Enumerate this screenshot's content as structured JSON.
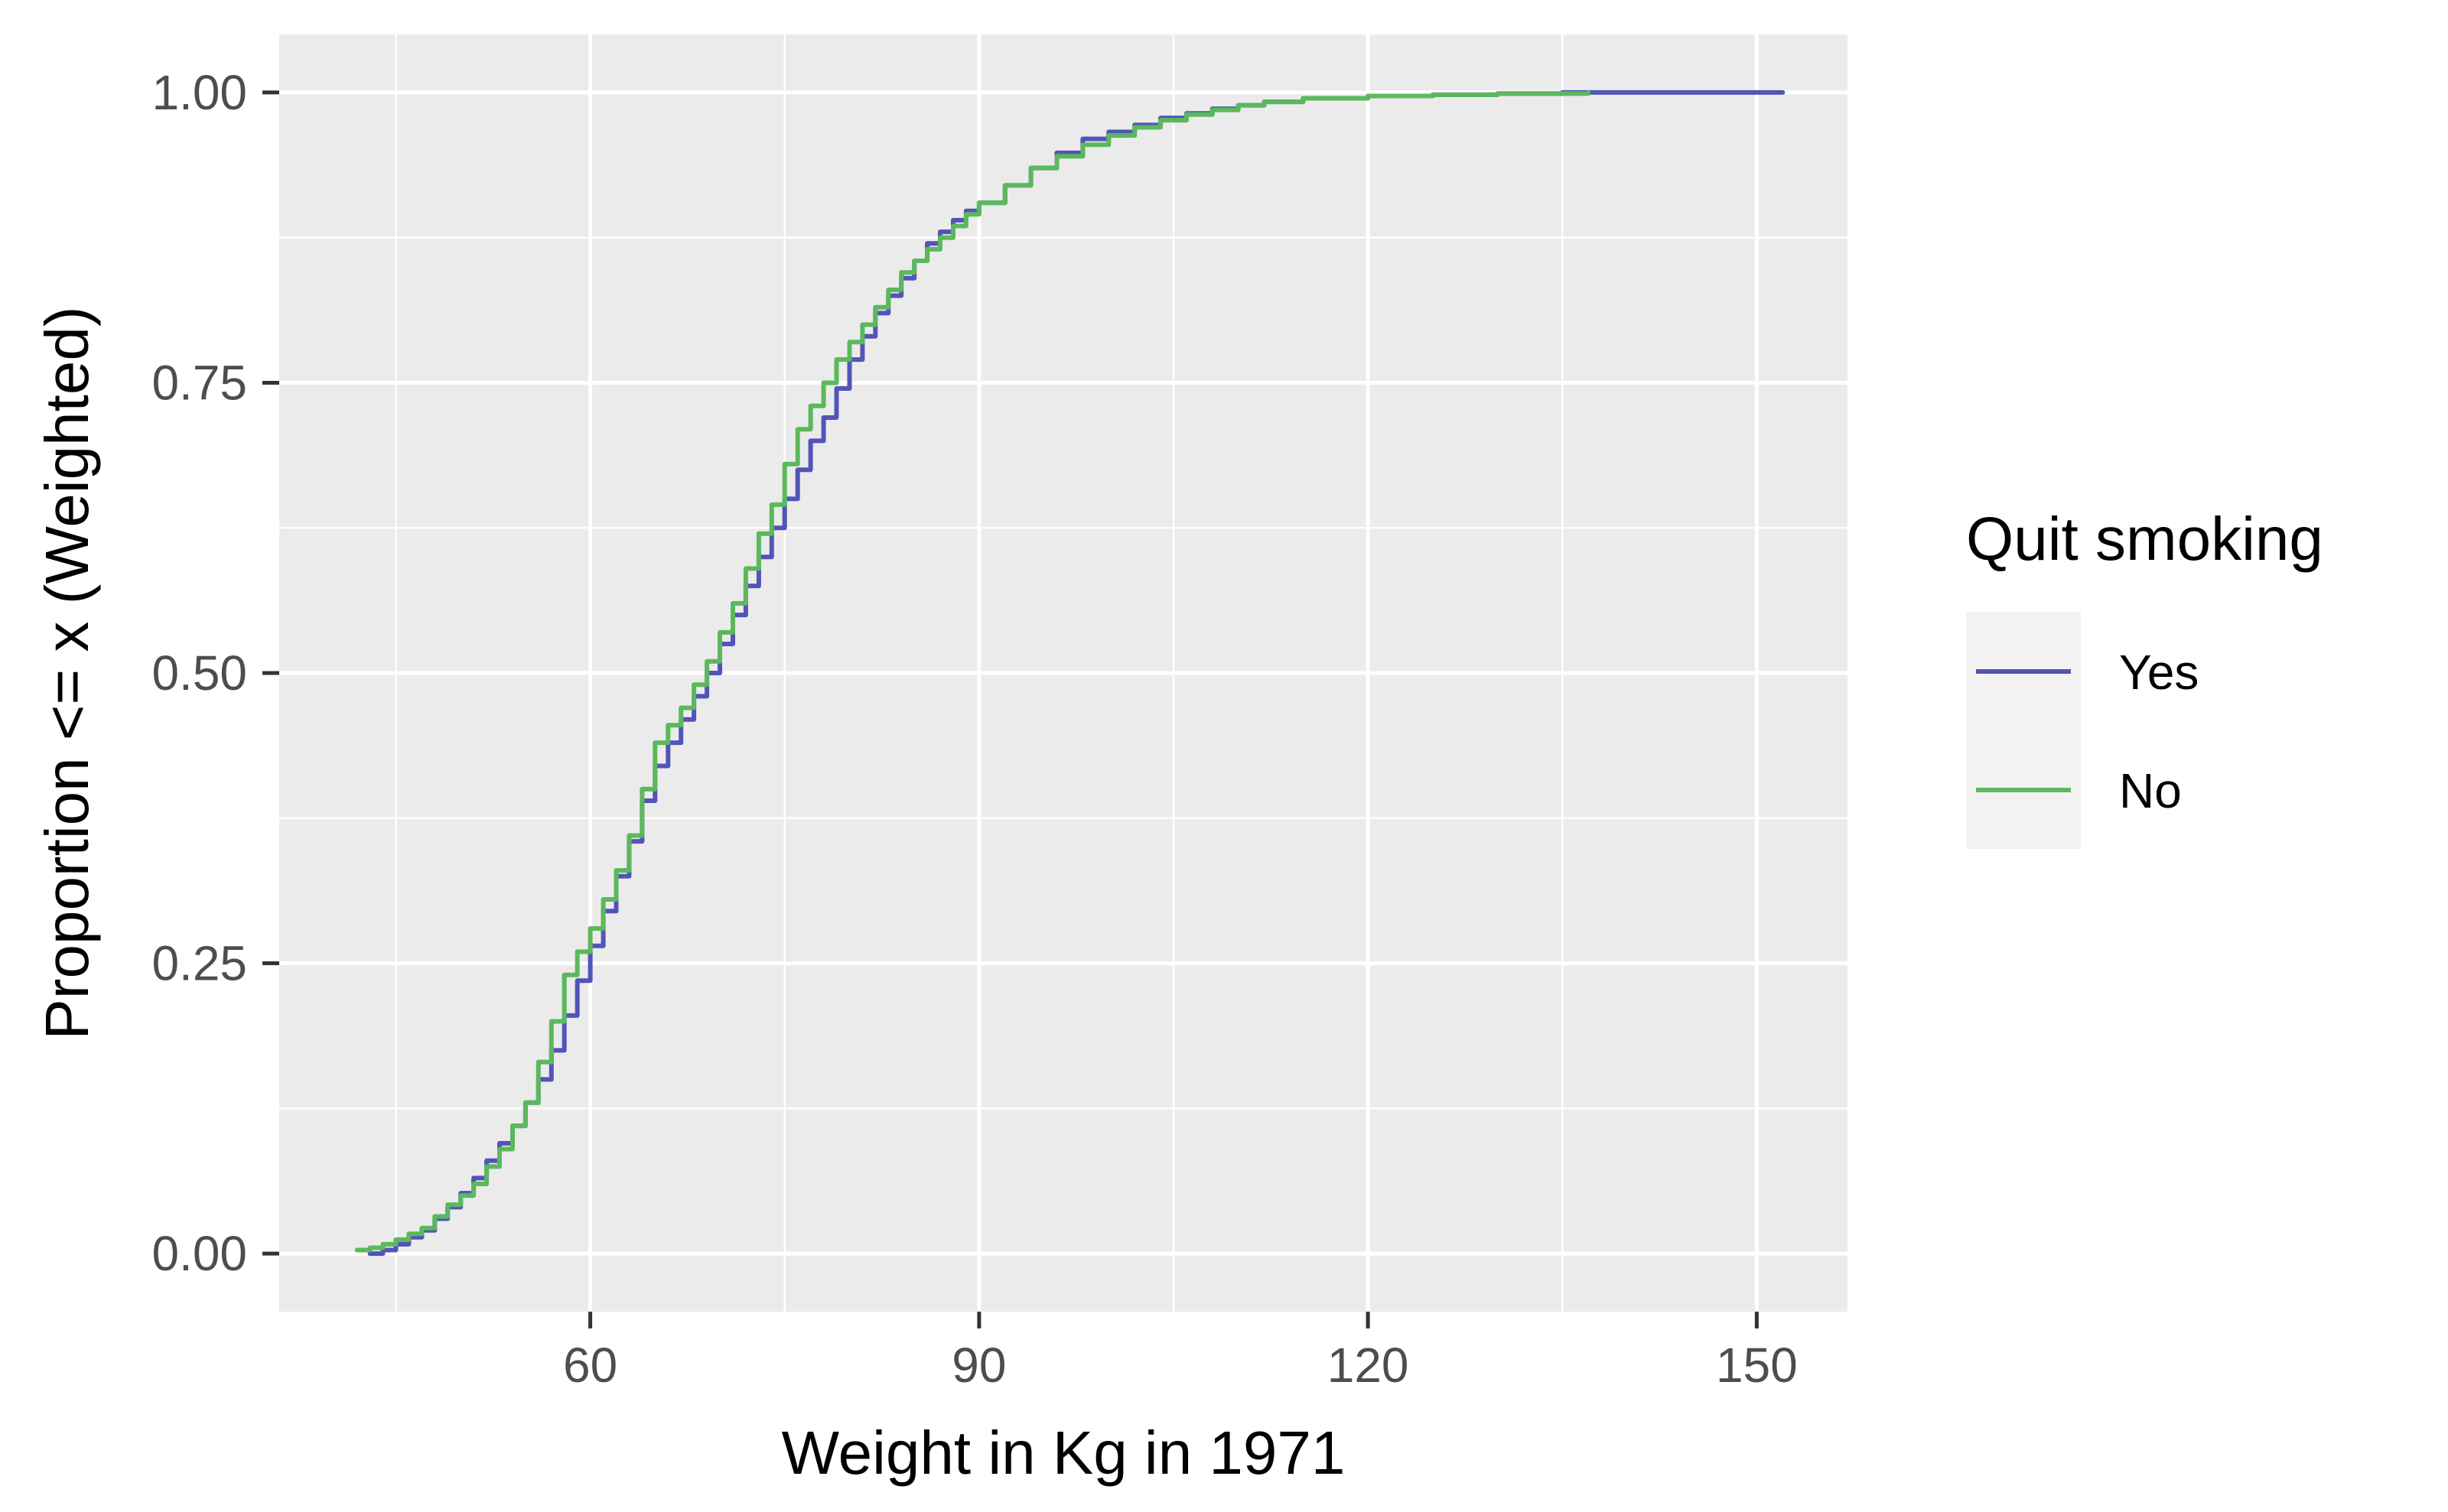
{
  "chart_data": {
    "type": "line",
    "step": true,
    "title": "",
    "xlabel": "Weight in Kg in 1971",
    "ylabel": "Proportion <= x (Weighted)",
    "xlim": [
      36,
      157
    ],
    "ylim": [
      -0.05,
      1.05
    ],
    "x_ticks": [
      60,
      90,
      120,
      150
    ],
    "x_tick_labels": [
      "60",
      "90",
      "120",
      "150"
    ],
    "x_minor_ticks": [
      45,
      75,
      105,
      135
    ],
    "y_ticks": [
      0,
      0.25,
      0.5,
      0.75,
      1
    ],
    "y_tick_labels": [
      "0.00",
      "0.25",
      "0.50",
      "0.75",
      "1.00"
    ],
    "y_minor_ticks": [
      0.125,
      0.375,
      0.625,
      0.875
    ],
    "grid": true,
    "panel_background": "#ebebeb",
    "grid_color": "#ffffff",
    "legend": {
      "title": "Quit smoking",
      "position": "right",
      "key_background": "#f2f2f2"
    },
    "series": [
      {
        "name": "Yes",
        "color": "#5154b8",
        "x": [
          43,
          44,
          45,
          46,
          47,
          48,
          49,
          50,
          51,
          52,
          53,
          54,
          55,
          56,
          57,
          58,
          59,
          60,
          61,
          62,
          63,
          64,
          65,
          66,
          67,
          68,
          69,
          70,
          71,
          72,
          73,
          74,
          75,
          76,
          77,
          78,
          79,
          80,
          81,
          82,
          83,
          84,
          85,
          86,
          87,
          88,
          89,
          90,
          92,
          94,
          96,
          98,
          100,
          102,
          104,
          106,
          108,
          110,
          112,
          115,
          120,
          125,
          130,
          135,
          140,
          145,
          152
        ],
        "y": [
          0.0,
          0.003,
          0.008,
          0.014,
          0.02,
          0.03,
          0.04,
          0.052,
          0.065,
          0.08,
          0.095,
          0.11,
          0.13,
          0.15,
          0.175,
          0.205,
          0.235,
          0.265,
          0.295,
          0.325,
          0.355,
          0.39,
          0.42,
          0.44,
          0.46,
          0.48,
          0.5,
          0.525,
          0.55,
          0.575,
          0.6,
          0.625,
          0.65,
          0.675,
          0.7,
          0.72,
          0.745,
          0.77,
          0.79,
          0.81,
          0.825,
          0.84,
          0.855,
          0.87,
          0.88,
          0.89,
          0.898,
          0.905,
          0.92,
          0.935,
          0.948,
          0.96,
          0.966,
          0.972,
          0.978,
          0.982,
          0.986,
          0.989,
          0.992,
          0.995,
          0.997,
          0.998,
          0.999,
          1.0,
          1.0,
          1.0,
          1.0
        ]
      },
      {
        "name": "No",
        "color": "#5cb85c",
        "x": [
          42,
          43,
          44,
          45,
          46,
          47,
          48,
          49,
          50,
          51,
          52,
          53,
          54,
          55,
          56,
          57,
          58,
          59,
          60,
          61,
          62,
          63,
          64,
          65,
          66,
          67,
          68,
          69,
          70,
          71,
          72,
          73,
          74,
          75,
          76,
          77,
          78,
          79,
          80,
          81,
          82,
          83,
          84,
          85,
          86,
          87,
          88,
          89,
          90,
          92,
          94,
          96,
          98,
          100,
          102,
          104,
          106,
          108,
          110,
          112,
          115,
          120,
          125,
          130,
          137
        ],
        "y": [
          0.003,
          0.005,
          0.008,
          0.012,
          0.017,
          0.022,
          0.032,
          0.042,
          0.05,
          0.06,
          0.075,
          0.09,
          0.11,
          0.13,
          0.165,
          0.2,
          0.24,
          0.26,
          0.28,
          0.305,
          0.33,
          0.36,
          0.4,
          0.44,
          0.455,
          0.47,
          0.49,
          0.51,
          0.535,
          0.56,
          0.59,
          0.62,
          0.645,
          0.68,
          0.71,
          0.73,
          0.75,
          0.77,
          0.785,
          0.8,
          0.815,
          0.83,
          0.845,
          0.855,
          0.865,
          0.875,
          0.885,
          0.895,
          0.905,
          0.92,
          0.935,
          0.945,
          0.955,
          0.963,
          0.97,
          0.976,
          0.981,
          0.985,
          0.989,
          0.992,
          0.995,
          0.997,
          0.998,
          0.999,
          1.0
        ]
      }
    ]
  }
}
